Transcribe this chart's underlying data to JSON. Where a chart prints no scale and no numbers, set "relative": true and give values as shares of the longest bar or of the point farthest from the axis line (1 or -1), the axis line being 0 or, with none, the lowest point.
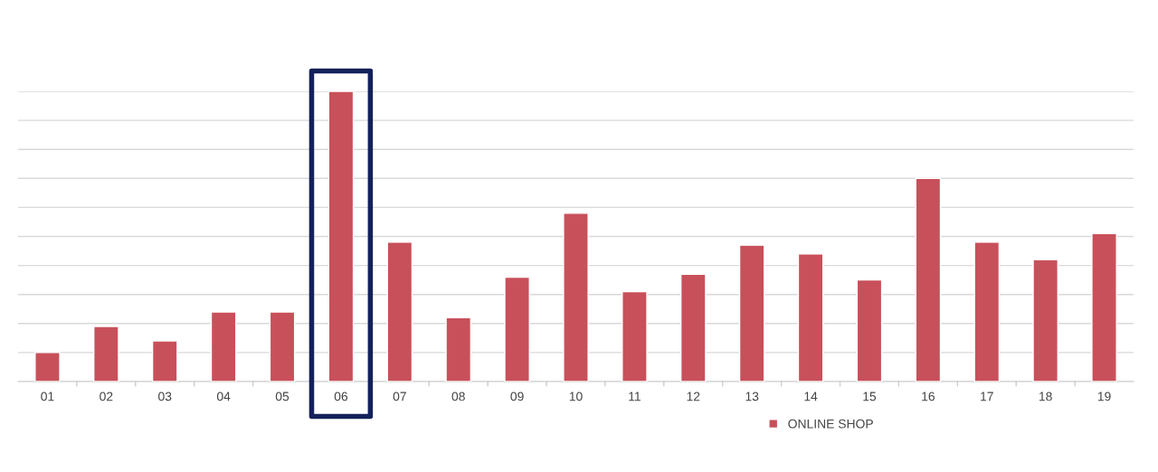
{
  "chart_data": {
    "type": "bar",
    "relative": true,
    "categories": [
      "01",
      "02",
      "03",
      "04",
      "05",
      "06",
      "07",
      "08",
      "09",
      "10",
      "11",
      "12",
      "13",
      "14",
      "15",
      "16",
      "17",
      "18",
      "19"
    ],
    "series": [
      {
        "name": "ONLINE SHOP",
        "color": "#c8505a",
        "values": [
          0.1,
          0.19,
          0.14,
          0.24,
          0.24,
          1,
          0.48,
          0.22,
          0.36,
          0.58,
          0.31,
          0.37,
          0.47,
          0.44,
          0.35,
          0.7,
          0.48,
          0.42,
          0.51
        ]
      }
    ],
    "grid": "y",
    "legend": "bottom"
  }
}
